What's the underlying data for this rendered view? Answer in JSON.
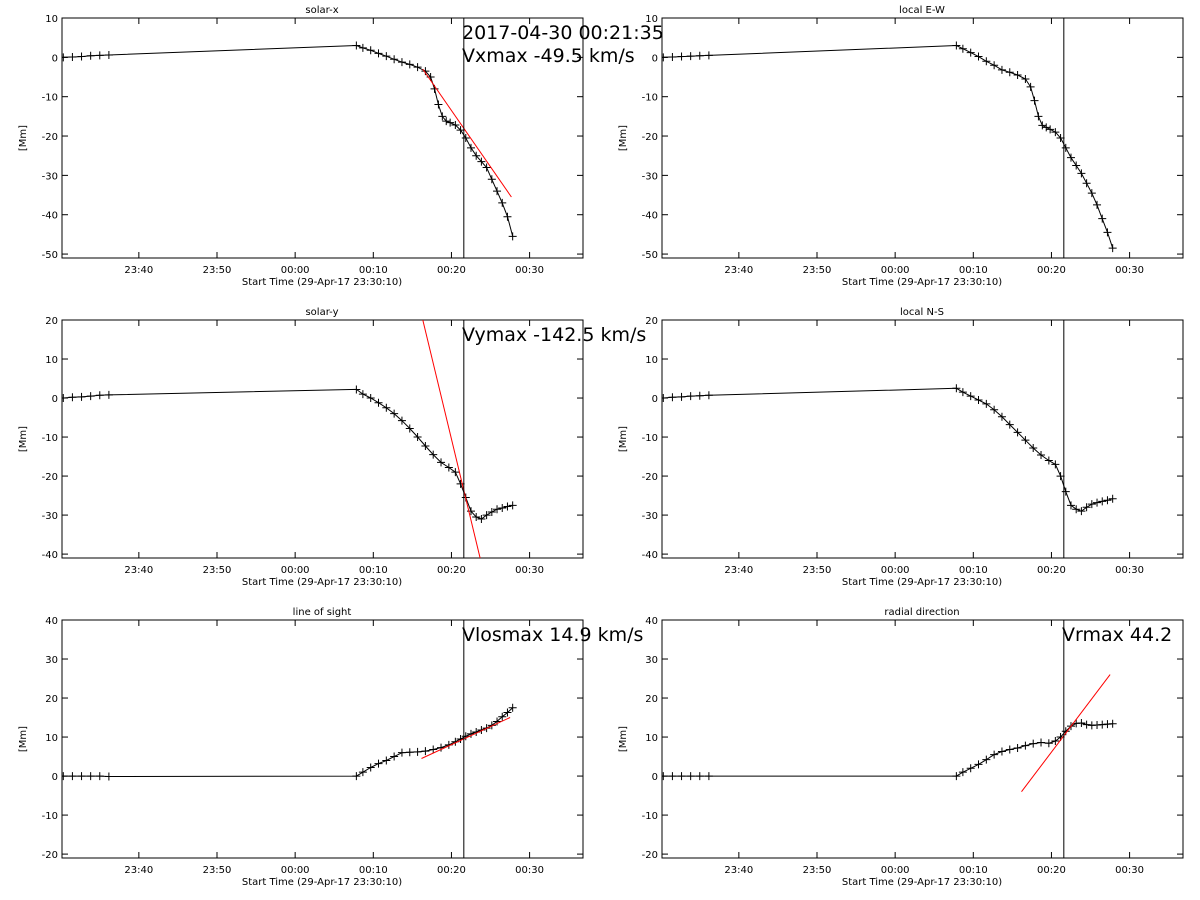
{
  "chart_data": [
    {
      "type": "line",
      "title": "solar-x",
      "xlabel": "Start Time (29-Apr-17 23:30:10)",
      "ylabel": "[Mm]",
      "xlim": [
        "23:30:10",
        "00:36:50"
      ],
      "xticks": [
        "23:40",
        "23:50",
        "00:00",
        "00:10",
        "00:20",
        "00:30"
      ],
      "ylim": [
        -51,
        10
      ],
      "yticks": [
        10,
        0,
        -10,
        -20,
        -30,
        -40,
        -50
      ],
      "vline_x": "00:21:35",
      "annotations": [
        "2017-04-30 00:21:35",
        "Vxmax  -49.5 km/s"
      ],
      "series": [
        {
          "marker": "+",
          "color": "#000000",
          "x": [
            "23:30:20",
            "23:31:30",
            "23:32:40",
            "23:33:50",
            "23:35:00",
            "23:36:10",
            "00:07:50",
            "00:08:40",
            "00:09:40",
            "00:10:40",
            "00:11:40",
            "00:12:40",
            "00:13:40",
            "00:14:40",
            "00:15:40",
            "00:16:40",
            "00:17:20",
            "00:17:50",
            "00:18:20",
            "00:18:50",
            "00:19:20",
            "00:19:50",
            "00:20:30",
            "00:21:10",
            "00:21:50",
            "00:22:30",
            "00:23:10",
            "00:23:50",
            "00:24:30",
            "00:25:10",
            "00:25:50",
            "00:26:30",
            "00:27:10",
            "00:27:50"
          ],
          "y": [
            0.0,
            0.1,
            0.2,
            0.4,
            0.5,
            0.6,
            3.0,
            2.4,
            1.8,
            1.0,
            0.3,
            -0.5,
            -1.2,
            -1.8,
            -2.5,
            -3.5,
            -5.0,
            -8.0,
            -12.0,
            -15.0,
            -16.2,
            -16.6,
            -17.2,
            -18.5,
            -20.5,
            -23.0,
            -25.0,
            -26.5,
            -28.0,
            -31.0,
            -34.0,
            -37.0,
            -40.5,
            -45.5
          ]
        },
        {
          "marker": "none",
          "color": "#ff0000",
          "x": [
            "00:16:20",
            "00:27:40"
          ],
          "y": [
            -3.0,
            -35.5
          ]
        }
      ]
    },
    {
      "type": "line",
      "title": "local E-W",
      "xlabel": "Start Time (29-Apr-17 23:30:10)",
      "ylabel": "[Mm]",
      "xlim": [
        "23:30:10",
        "00:36:50"
      ],
      "xticks": [
        "23:40",
        "23:50",
        "00:00",
        "00:10",
        "00:20",
        "00:30"
      ],
      "ylim": [
        -51,
        10
      ],
      "yticks": [
        10,
        0,
        -10,
        -20,
        -30,
        -40,
        -50
      ],
      "vline_x": "00:21:35",
      "series": [
        {
          "marker": "+",
          "color": "#000000",
          "x": [
            "23:30:20",
            "23:31:30",
            "23:32:40",
            "23:33:50",
            "23:35:00",
            "23:36:10",
            "00:07:50",
            "00:08:40",
            "00:09:40",
            "00:10:40",
            "00:11:40",
            "00:12:40",
            "00:13:40",
            "00:14:40",
            "00:15:40",
            "00:16:40",
            "00:17:20",
            "00:17:50",
            "00:18:20",
            "00:18:50",
            "00:19:20",
            "00:19:50",
            "00:20:30",
            "00:21:10",
            "00:21:50",
            "00:22:30",
            "00:23:10",
            "00:23:50",
            "00:24:30",
            "00:25:10",
            "00:25:50",
            "00:26:30",
            "00:27:10",
            "00:27:50"
          ],
          "y": [
            0.0,
            0.1,
            0.2,
            0.3,
            0.4,
            0.5,
            3.0,
            2.2,
            1.2,
            0.2,
            -1.0,
            -2.0,
            -3.2,
            -3.8,
            -4.5,
            -5.5,
            -7.5,
            -11.0,
            -15.0,
            -17.3,
            -17.8,
            -18.3,
            -19.0,
            -20.5,
            -23.0,
            -25.5,
            -27.5,
            -29.5,
            -32.0,
            -34.5,
            -37.5,
            -41.0,
            -44.5,
            -48.5
          ]
        }
      ]
    },
    {
      "type": "line",
      "title": "solar-y",
      "xlabel": "Start Time (29-Apr-17 23:30:10)",
      "ylabel": "[Mm]",
      "xlim": [
        "23:30:10",
        "00:36:50"
      ],
      "xticks": [
        "23:40",
        "23:50",
        "00:00",
        "00:10",
        "00:20",
        "00:30"
      ],
      "ylim": [
        -41,
        20
      ],
      "yticks": [
        20,
        10,
        0,
        -10,
        -20,
        -30,
        -40
      ],
      "vline_x": "00:21:35",
      "annotations": [
        "Vymax  -142.5 km/s"
      ],
      "series": [
        {
          "marker": "+",
          "color": "#000000",
          "x": [
            "23:30:20",
            "23:31:30",
            "23:32:40",
            "23:33:50",
            "23:35:00",
            "23:36:10",
            "00:07:50",
            "00:08:40",
            "00:09:40",
            "00:10:40",
            "00:11:40",
            "00:12:40",
            "00:13:40",
            "00:14:40",
            "00:15:40",
            "00:16:40",
            "00:17:40",
            "00:18:40",
            "00:19:40",
            "00:20:30",
            "00:21:10",
            "00:21:50",
            "00:22:30",
            "00:23:10",
            "00:23:50",
            "00:24:30",
            "00:25:10",
            "00:25:50",
            "00:26:30",
            "00:27:10",
            "00:27:50"
          ],
          "y": [
            0.0,
            0.2,
            0.3,
            0.5,
            0.7,
            0.8,
            2.2,
            1.0,
            0.0,
            -1.2,
            -2.5,
            -4.0,
            -5.8,
            -7.8,
            -10.0,
            -12.3,
            -14.5,
            -16.5,
            -17.8,
            -19.0,
            -22.0,
            -25.5,
            -29.0,
            -30.5,
            -31.0,
            -30.0,
            -29.2,
            -28.5,
            -28.2,
            -27.8,
            -27.5
          ]
        },
        {
          "marker": "none",
          "color": "#ff0000",
          "x": [
            "00:16:20",
            "00:23:40"
          ],
          "y": [
            20.0,
            -41.0
          ]
        }
      ]
    },
    {
      "type": "line",
      "title": "local N-S",
      "xlabel": "Start Time (29-Apr-17 23:30:10)",
      "ylabel": "[Mm]",
      "xlim": [
        "23:30:10",
        "00:36:50"
      ],
      "xticks": [
        "23:40",
        "23:50",
        "00:00",
        "00:10",
        "00:20",
        "00:30"
      ],
      "ylim": [
        -41,
        20
      ],
      "yticks": [
        20,
        10,
        0,
        -10,
        -20,
        -30,
        -40
      ],
      "vline_x": "00:21:35",
      "series": [
        {
          "marker": "+",
          "color": "#000000",
          "x": [
            "23:30:20",
            "23:31:30",
            "23:32:40",
            "23:33:50",
            "23:35:00",
            "23:36:10",
            "00:07:50",
            "00:08:40",
            "00:09:40",
            "00:10:40",
            "00:11:40",
            "00:12:40",
            "00:13:40",
            "00:14:40",
            "00:15:40",
            "00:16:40",
            "00:17:40",
            "00:18:40",
            "00:19:40",
            "00:20:30",
            "00:21:10",
            "00:21:50",
            "00:22:30",
            "00:23:10",
            "00:23:50",
            "00:24:30",
            "00:25:10",
            "00:25:50",
            "00:26:30",
            "00:27:10",
            "00:27:50"
          ],
          "y": [
            0.0,
            0.2,
            0.3,
            0.5,
            0.6,
            0.7,
            2.5,
            1.5,
            0.5,
            -0.5,
            -1.5,
            -3.0,
            -4.8,
            -6.8,
            -8.8,
            -10.8,
            -12.8,
            -14.6,
            -16.0,
            -17.0,
            -20.0,
            -24.0,
            -27.5,
            -28.5,
            -29.0,
            -28.0,
            -27.2,
            -26.8,
            -26.5,
            -26.2,
            -25.8
          ]
        }
      ]
    },
    {
      "type": "line",
      "title": "line of sight",
      "xlabel": "Start Time (29-Apr-17 23:30:10)",
      "ylabel": "[Mm]",
      "xlim": [
        "23:30:10",
        "00:36:50"
      ],
      "xticks": [
        "23:40",
        "23:50",
        "00:00",
        "00:10",
        "00:20",
        "00:30"
      ],
      "ylim": [
        -21,
        40
      ],
      "yticks": [
        40,
        30,
        20,
        10,
        0,
        -10,
        -20
      ],
      "vline_x": "00:21:35",
      "annotations": [
        "Vlosmax   14.9 km/s"
      ],
      "series": [
        {
          "marker": "+",
          "color": "#000000",
          "x": [
            "23:30:20",
            "23:31:30",
            "23:32:40",
            "23:33:50",
            "23:35:00",
            "23:36:10",
            "00:07:50",
            "00:08:40",
            "00:09:40",
            "00:10:40",
            "00:11:40",
            "00:12:40",
            "00:13:40",
            "00:14:40",
            "00:15:40",
            "00:16:40",
            "00:17:40",
            "00:18:40",
            "00:19:40",
            "00:20:30",
            "00:21:10",
            "00:21:50",
            "00:22:30",
            "00:23:10",
            "00:23:50",
            "00:24:30",
            "00:25:10",
            "00:25:50",
            "00:26:30",
            "00:27:10",
            "00:27:50"
          ],
          "y": [
            0.0,
            0.0,
            0.0,
            0.0,
            0.0,
            -0.1,
            0.0,
            1.0,
            2.2,
            3.2,
            4.0,
            5.0,
            6.0,
            6.1,
            6.2,
            6.4,
            6.8,
            7.3,
            8.0,
            8.8,
            9.5,
            10.2,
            10.8,
            11.3,
            11.8,
            12.3,
            13.0,
            14.0,
            15.2,
            16.3,
            17.5
          ]
        },
        {
          "marker": "none",
          "color": "#ff0000",
          "x": [
            "00:16:10",
            "00:27:30"
          ],
          "y": [
            4.5,
            15.0
          ]
        }
      ]
    },
    {
      "type": "line",
      "title": "radial direction",
      "xlabel": "Start Time (29-Apr-17 23:30:10)",
      "ylabel": "[Mm]",
      "xlim": [
        "23:30:10",
        "00:36:50"
      ],
      "xticks": [
        "23:40",
        "23:50",
        "00:00",
        "00:10",
        "00:20",
        "00:30"
      ],
      "ylim": [
        -21,
        40
      ],
      "yticks": [
        40,
        30,
        20,
        10,
        0,
        -10,
        -20
      ],
      "vline_x": "00:21:35",
      "annotations": [
        "Vrmax    44.2"
      ],
      "series": [
        {
          "marker": "+",
          "color": "#000000",
          "x": [
            "23:30:20",
            "23:31:30",
            "23:32:40",
            "23:33:50",
            "23:35:00",
            "23:36:10",
            "00:07:50",
            "00:08:40",
            "00:09:40",
            "00:10:40",
            "00:11:40",
            "00:12:40",
            "00:13:40",
            "00:14:40",
            "00:15:40",
            "00:16:40",
            "00:17:40",
            "00:18:40",
            "00:19:40",
            "00:20:30",
            "00:21:10",
            "00:21:50",
            "00:22:30",
            "00:23:10",
            "00:23:50",
            "00:24:30",
            "00:25:10",
            "00:25:50",
            "00:26:30",
            "00:27:10",
            "00:27:50"
          ],
          "y": [
            0.0,
            0.0,
            0.0,
            0.0,
            0.0,
            0.0,
            0.0,
            1.0,
            2.0,
            3.0,
            4.2,
            5.5,
            6.3,
            6.8,
            7.2,
            7.8,
            8.3,
            8.6,
            8.4,
            9.0,
            10.0,
            11.5,
            12.8,
            13.5,
            13.6,
            13.2,
            13.0,
            13.1,
            13.2,
            13.3,
            13.4
          ]
        },
        {
          "marker": "none",
          "color": "#ff0000",
          "x": [
            "00:16:10",
            "00:27:30"
          ],
          "y": [
            -4.0,
            26.0
          ]
        }
      ]
    }
  ]
}
